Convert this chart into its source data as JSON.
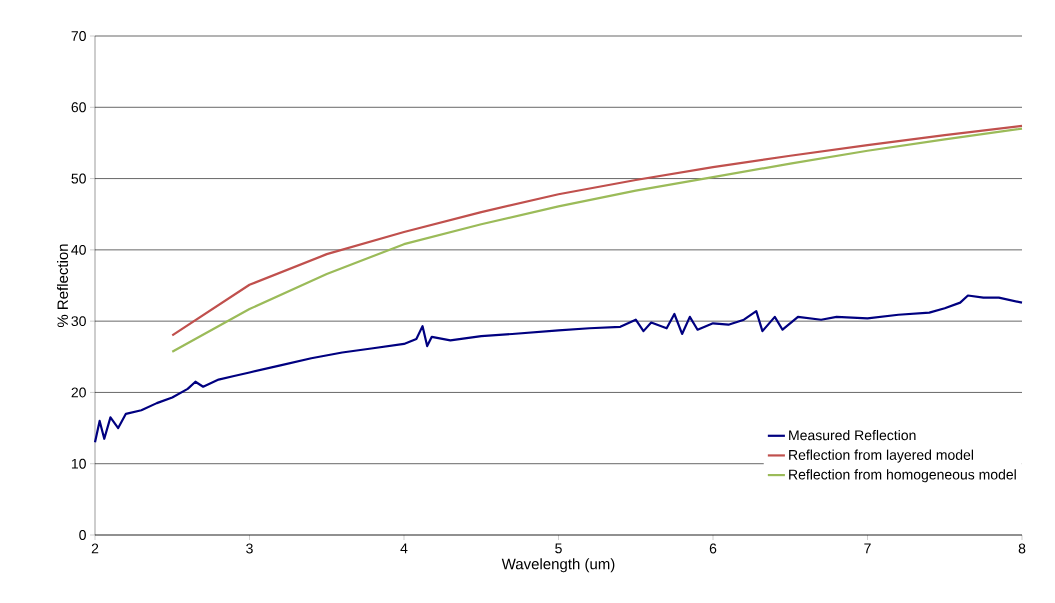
{
  "chart_data": {
    "type": "line",
    "xlabel": "Wavelength (um)",
    "ylabel": "% Reflection",
    "xlim": [
      2,
      8
    ],
    "xticks": [
      2,
      3,
      4,
      5,
      6,
      7,
      8
    ],
    "ylim": [
      0,
      70
    ],
    "yticks": [
      0,
      10,
      20,
      30,
      40,
      50,
      60,
      70
    ],
    "grid": "y",
    "legend": "bottom right",
    "marker": "none",
    "line_style": "solid",
    "series": [
      {
        "name": "Measured Reflection",
        "color": "#000080",
        "x": [
          2.0,
          2.03,
          2.06,
          2.1,
          2.15,
          2.2,
          2.3,
          2.4,
          2.5,
          2.6,
          2.65,
          2.7,
          2.8,
          2.9,
          3.0,
          3.2,
          3.4,
          3.6,
          3.8,
          4.0,
          4.08,
          4.12,
          4.15,
          4.18,
          4.3,
          4.5,
          4.7,
          5.0,
          5.2,
          5.4,
          5.5,
          5.55,
          5.6,
          5.7,
          5.75,
          5.8,
          5.85,
          5.9,
          6.0,
          6.1,
          6.2,
          6.28,
          6.32,
          6.4,
          6.45,
          6.55,
          6.7,
          6.8,
          7.0,
          7.2,
          7.4,
          7.5,
          7.6,
          7.65,
          7.75,
          7.85,
          8.0
        ],
        "values": [
          13,
          16,
          13.5,
          16.5,
          15,
          17,
          17.5,
          18.5,
          19.3,
          20.5,
          21.5,
          20.8,
          21.8,
          22.3,
          22.8,
          23.8,
          24.8,
          25.6,
          26.2,
          26.8,
          27.5,
          29.3,
          26.5,
          27.8,
          27.3,
          27.9,
          28.2,
          28.7,
          29.0,
          29.2,
          30.2,
          28.6,
          29.8,
          29.0,
          31.0,
          28.2,
          30.6,
          28.8,
          29.7,
          29.5,
          30.2,
          31.4,
          28.6,
          30.6,
          28.8,
          30.6,
          30.2,
          30.6,
          30.4,
          30.9,
          31.2,
          31.8,
          32.6,
          33.6,
          33.3,
          33.3,
          32.6
        ]
      },
      {
        "name": "Reflection from layered model",
        "color": "#c0504d",
        "x": [
          2.5,
          3.0,
          3.5,
          4.0,
          4.5,
          5.0,
          5.5,
          6.0,
          6.5,
          7.0,
          7.5,
          8.0
        ],
        "values": [
          28.0,
          35.1,
          39.4,
          42.5,
          45.3,
          47.8,
          49.8,
          51.6,
          53.2,
          54.7,
          56.1,
          57.4
        ]
      },
      {
        "name": "Reflection from homogeneous model",
        "color": "#9bbb59",
        "x": [
          2.5,
          3.0,
          3.5,
          4.0,
          4.5,
          5.0,
          5.5,
          6.0,
          6.5,
          7.0,
          7.5,
          8.0
        ],
        "values": [
          25.7,
          31.7,
          36.6,
          40.8,
          43.6,
          46.1,
          48.3,
          50.2,
          52.1,
          53.9,
          55.5,
          57.0
        ]
      }
    ]
  }
}
